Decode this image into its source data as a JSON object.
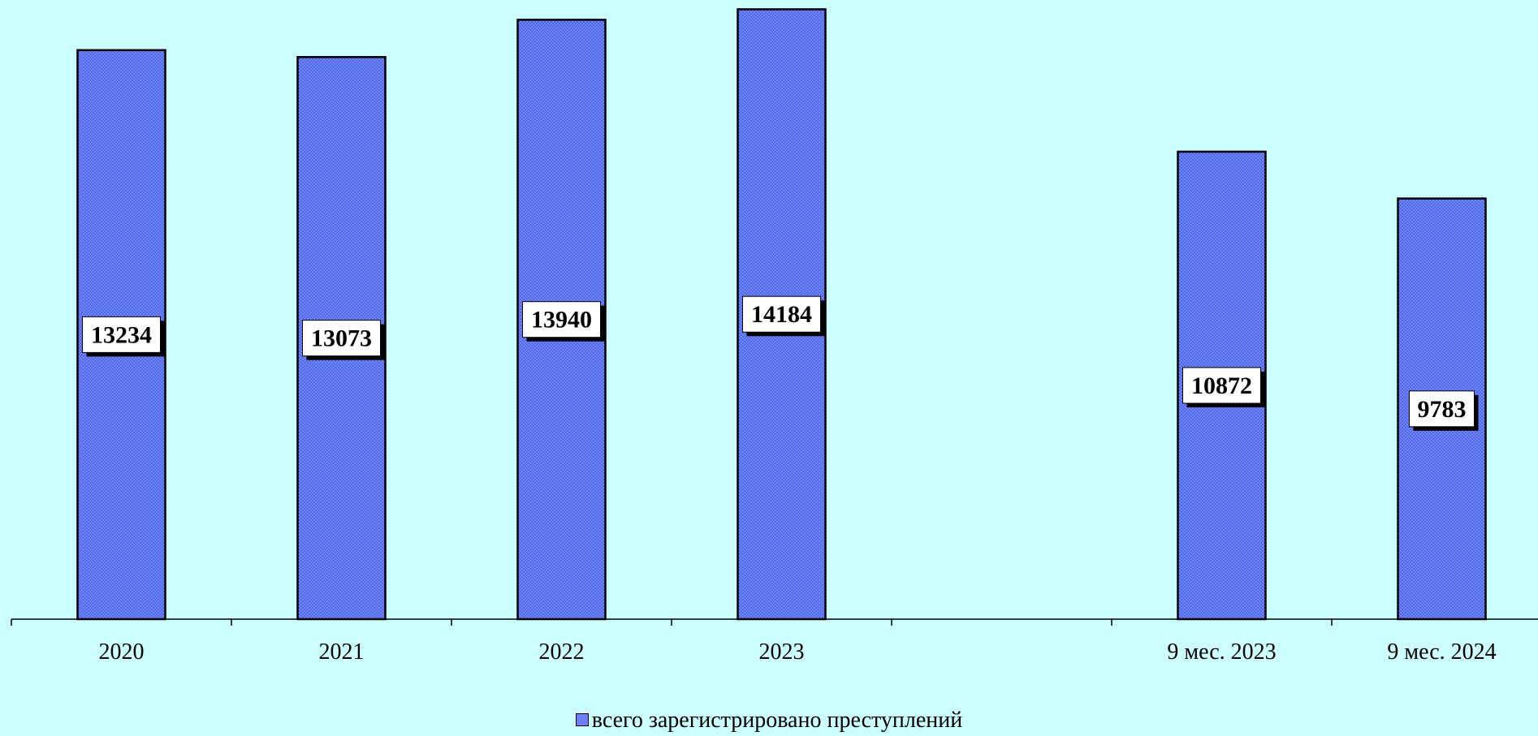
{
  "chart_data": {
    "type": "bar",
    "categories": [
      "2020",
      "2021",
      "2022",
      "2023",
      "",
      "9 мес. 2023",
      "9 мес. 2024"
    ],
    "series": [
      {
        "name": "всего зарегистрировано преступлений",
        "values": [
          13234,
          13073,
          13940,
          14184,
          null,
          10872,
          9783
        ]
      }
    ],
    "data_labels": [
      "13234",
      "13073",
      "13940",
      "14184",
      "",
      "10872",
      "9783"
    ],
    "title": "",
    "xlabel": "",
    "ylabel": "",
    "ylim": [
      0,
      14400
    ],
    "grid": false,
    "legend_position": "bottom",
    "colors": {
      "background": "#ccffff",
      "bar": "#6b80f5",
      "bar_pattern": "#4f66e8",
      "label_box": "#ffffff"
    }
  },
  "legend": {
    "label": "всего зарегистрировано преступлений"
  }
}
